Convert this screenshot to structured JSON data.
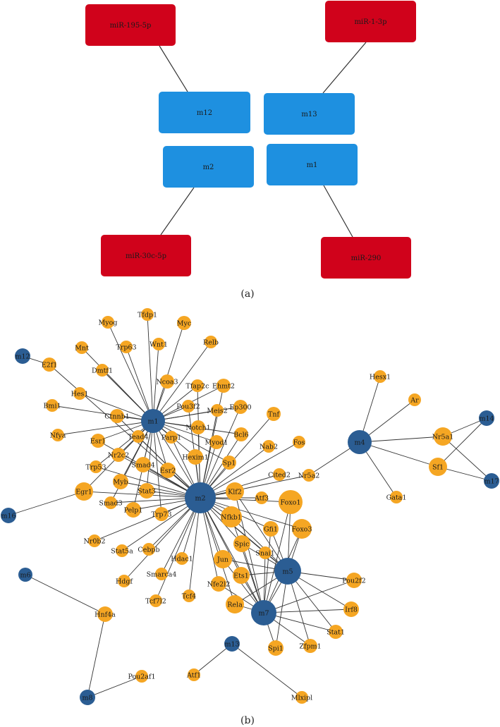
{
  "panel_a": {
    "label": "(a)",
    "mirnas": [
      {
        "id": "mir195",
        "label": "miR-195-5p"
      },
      {
        "id": "mir1",
        "label": "miR-1-3p"
      },
      {
        "id": "mir30c",
        "label": "miR-30c-5p"
      },
      {
        "id": "mir290",
        "label": "miR-290"
      }
    ],
    "modules": [
      {
        "id": "am12",
        "label": "m12"
      },
      {
        "id": "am13",
        "label": "m13"
      },
      {
        "id": "am2",
        "label": "m2"
      },
      {
        "id": "am1",
        "label": "m1"
      }
    ],
    "links": [
      [
        "mir195",
        "am12"
      ],
      [
        "mir1",
        "am13"
      ],
      [
        "mir30c",
        "am2"
      ],
      [
        "mir290",
        "am1"
      ]
    ]
  },
  "panel_b": {
    "label": "(b)",
    "module_nodes": [
      {
        "id": "m1",
        "label": "m1"
      },
      {
        "id": "m2",
        "label": "m2"
      },
      {
        "id": "m4",
        "label": "m4"
      },
      {
        "id": "m5",
        "label": "m5"
      },
      {
        "id": "m7",
        "label": "m7"
      },
      {
        "id": "m12",
        "label": "m12"
      },
      {
        "id": "m14",
        "label": "m14"
      },
      {
        "id": "m16",
        "label": "m16"
      },
      {
        "id": "m17",
        "label": "m17"
      },
      {
        "id": "m6",
        "label": "m6"
      },
      {
        "id": "m8",
        "label": "m8"
      },
      {
        "id": "m13",
        "label": "m13"
      }
    ],
    "gene_nodes": [
      {
        "id": "Myog",
        "label": "Myog"
      },
      {
        "id": "Tfdp1",
        "label": "Tfdp1"
      },
      {
        "id": "Myc",
        "label": "Myc"
      },
      {
        "id": "Relb",
        "label": "Relb"
      },
      {
        "id": "Mnt",
        "label": "Mnt"
      },
      {
        "id": "Trp63",
        "label": "Trp63"
      },
      {
        "id": "Wnt1",
        "label": "Wnt1"
      },
      {
        "id": "E2f1",
        "label": "E2f1"
      },
      {
        "id": "Dmtf1",
        "label": "Dmtf1"
      },
      {
        "id": "Ncoa3",
        "label": "Ncoa3"
      },
      {
        "id": "Tfap2c",
        "label": "Tfap2c"
      },
      {
        "id": "Ehmt2",
        "label": "Ehmt2"
      },
      {
        "id": "Hes1",
        "label": "Hes1"
      },
      {
        "id": "Bmi1",
        "label": "Bmi1"
      },
      {
        "id": "Pou3f2",
        "label": "Pou3f2"
      },
      {
        "id": "Meis2",
        "label": "Meis2"
      },
      {
        "id": "Ep300",
        "label": "Ep300"
      },
      {
        "id": "Ctnnb1",
        "label": "Ctnnb1"
      },
      {
        "id": "Tnf",
        "label": "Tnf"
      },
      {
        "id": "Nfya",
        "label": "Nfya"
      },
      {
        "id": "Tead4",
        "label": "Tead4"
      },
      {
        "id": "Notch1",
        "label": "Notch1"
      },
      {
        "id": "Bcl6",
        "label": "Bcl6"
      },
      {
        "id": "Esr1",
        "label": "Esr1"
      },
      {
        "id": "Parp1",
        "label": "Parp1"
      },
      {
        "id": "Myod1",
        "label": "Myod1"
      },
      {
        "id": "Nab2",
        "label": "Nab2"
      },
      {
        "id": "Fos",
        "label": "Fos"
      },
      {
        "id": "Nr2c2",
        "label": "Nr2c2"
      },
      {
        "id": "Hexim1",
        "label": "Hexim1"
      },
      {
        "id": "Smad4",
        "label": "Smad4"
      },
      {
        "id": "Esr2",
        "label": "Esr2"
      },
      {
        "id": "Sp1",
        "label": "Sp1"
      },
      {
        "id": "Trp53",
        "label": "Trp53"
      },
      {
        "id": "Cited2",
        "label": "Cited2"
      },
      {
        "id": "Nr5a2",
        "label": "Nr5a2"
      },
      {
        "id": "Myb",
        "label": "Myb"
      },
      {
        "id": "Klf2",
        "label": "Klf2"
      },
      {
        "id": "Egr1",
        "label": "Egr1"
      },
      {
        "id": "Stat3",
        "label": "Stat3"
      },
      {
        "id": "Atf3",
        "label": "Atf3"
      },
      {
        "id": "Foxo1",
        "label": "Foxo1"
      },
      {
        "id": "Smad3",
        "label": "Smad3"
      },
      {
        "id": "Pelp1",
        "label": "Pelp1"
      },
      {
        "id": "Trp73",
        "label": "Trp73"
      },
      {
        "id": "Nfkb1",
        "label": "Nfkb1"
      },
      {
        "id": "Gfi1",
        "label": "Gfi1"
      },
      {
        "id": "Foxo3",
        "label": "Foxo3"
      },
      {
        "id": "Nr0b2",
        "label": "Nr0b2"
      },
      {
        "id": "Spic",
        "label": "Spic"
      },
      {
        "id": "Snai1",
        "label": "Snai1"
      },
      {
        "id": "Stat5a",
        "label": "Stat5a"
      },
      {
        "id": "Cebpb",
        "label": "Cebpb"
      },
      {
        "id": "Hdac1",
        "label": "Hdac1"
      },
      {
        "id": "Jun",
        "label": "Jun"
      },
      {
        "id": "Hdgf",
        "label": "Hdgf"
      },
      {
        "id": "Smarca4",
        "label": "Smarca4"
      },
      {
        "id": "Ets1",
        "label": "Ets1"
      },
      {
        "id": "Tcf4",
        "label": "Tcf4"
      },
      {
        "id": "Nfe2l2",
        "label": "Nfe2l2"
      },
      {
        "id": "Tcf7l2",
        "label": "Tcf7l2"
      },
      {
        "id": "Rela",
        "label": "Rela"
      },
      {
        "id": "Pou2f2",
        "label": "Pou2f2"
      },
      {
        "id": "Irf8",
        "label": "Irf8"
      },
      {
        "id": "Stat1",
        "label": "Stat1"
      },
      {
        "id": "Spi1",
        "label": "Spi1"
      },
      {
        "id": "Zfpm1",
        "label": "Zfpm1"
      },
      {
        "id": "Hesx1",
        "label": "Hesx1"
      },
      {
        "id": "Ar",
        "label": "Ar"
      },
      {
        "id": "Nr5a1",
        "label": "Nr5a1"
      },
      {
        "id": "Sf1",
        "label": "Sf1"
      },
      {
        "id": "Gata1",
        "label": "Gata1"
      },
      {
        "id": "Hnf4a",
        "label": "Hnf4a"
      },
      {
        "id": "Pou2af1",
        "label": "Pou2af1"
      },
      {
        "id": "Atf1",
        "label": "Atf1"
      },
      {
        "id": "Mlxipl",
        "label": "Mlxipl"
      }
    ],
    "edges": [
      [
        "m1",
        "Myog"
      ],
      [
        "m1",
        "Tfdp1"
      ],
      [
        "m1",
        "Myc"
      ],
      [
        "m1",
        "Relb"
      ],
      [
        "m1",
        "Mnt"
      ],
      [
        "m1",
        "Trp63"
      ],
      [
        "m1",
        "Wnt1"
      ],
      [
        "m1",
        "Dmtf1"
      ],
      [
        "m1",
        "Ncoa3"
      ],
      [
        "m1",
        "Tfap2c"
      ],
      [
        "m1",
        "Ehmt2"
      ],
      [
        "m1",
        "Hes1"
      ],
      [
        "m1",
        "Bmi1"
      ],
      [
        "m1",
        "Pou3f2"
      ],
      [
        "m1",
        "Meis2"
      ],
      [
        "m1",
        "Ep300"
      ],
      [
        "m1",
        "Ctnnb1"
      ],
      [
        "m1",
        "Nfya"
      ],
      [
        "m1",
        "Tead4"
      ],
      [
        "m1",
        "Notch1"
      ],
      [
        "m1",
        "Bcl6"
      ],
      [
        "m1",
        "Esr1"
      ],
      [
        "m1",
        "Parp1"
      ],
      [
        "m1",
        "Myod1"
      ],
      [
        "m1",
        "Nr2c2"
      ],
      [
        "m1",
        "Hexim1"
      ],
      [
        "m1",
        "Smad4"
      ],
      [
        "m1",
        "Esr2"
      ],
      [
        "m1",
        "Trp53"
      ],
      [
        "m1",
        "Myb"
      ],
      [
        "m1",
        "Egr1"
      ],
      [
        "m1",
        "Stat3"
      ],
      [
        "m1",
        "Smad3"
      ],
      [
        "m1",
        "Pelp1"
      ],
      [
        "m1",
        "Trp73"
      ],
      [
        "m1",
        "m2"
      ],
      [
        "m1",
        "Sp1"
      ],
      [
        "m12",
        "E2f1"
      ],
      [
        "E2f1",
        "m2"
      ],
      [
        "m2",
        "Tnf"
      ],
      [
        "m2",
        "Nab2"
      ],
      [
        "m2",
        "Fos"
      ],
      [
        "m2",
        "Cited2"
      ],
      [
        "m2",
        "Nr5a2"
      ],
      [
        "m2",
        "Sp1"
      ],
      [
        "m2",
        "Klf2"
      ],
      [
        "m2",
        "Atf3"
      ],
      [
        "m2",
        "Foxo1"
      ],
      [
        "m2",
        "Nfkb1"
      ],
      [
        "m2",
        "Gfi1"
      ],
      [
        "m2",
        "Foxo3"
      ],
      [
        "m2",
        "Spic"
      ],
      [
        "m2",
        "Snai1"
      ],
      [
        "m2",
        "Jun"
      ],
      [
        "m2",
        "Ets1"
      ],
      [
        "m2",
        "Nfe2l2"
      ],
      [
        "m2",
        "Rela"
      ],
      [
        "m2",
        "Hexim1"
      ],
      [
        "m2",
        "Esr2"
      ],
      [
        "m2",
        "Stat3"
      ],
      [
        "m2",
        "Myb"
      ],
      [
        "m2",
        "Smad4"
      ],
      [
        "m2",
        "Nr2c2"
      ],
      [
        "m2",
        "Esr1"
      ],
      [
        "m2",
        "Parp1"
      ],
      [
        "m2",
        "Myod1"
      ],
      [
        "m2",
        "Bcl6"
      ],
      [
        "m2",
        "Notch1"
      ],
      [
        "m2",
        "Tead4"
      ],
      [
        "m2",
        "Ctnnb1"
      ],
      [
        "m2",
        "Meis2"
      ],
      [
        "m2",
        "Ep300"
      ],
      [
        "m2",
        "Pou3f2"
      ],
      [
        "m2",
        "Tfap2c"
      ],
      [
        "m2",
        "Ehmt2"
      ],
      [
        "m2",
        "Egr1"
      ],
      [
        "m2",
        "Pelp1"
      ],
      [
        "m2",
        "Trp73"
      ],
      [
        "m2",
        "Smad3"
      ],
      [
        "m2",
        "Nr0b2"
      ],
      [
        "m2",
        "Stat5a"
      ],
      [
        "m2",
        "Cebpb"
      ],
      [
        "m2",
        "Hdac1"
      ],
      [
        "m2",
        "Hdgf"
      ],
      [
        "m2",
        "Smarca4"
      ],
      [
        "m2",
        "Tcf4"
      ],
      [
        "m2",
        "Tcf7l2"
      ],
      [
        "m2",
        "Trp53"
      ],
      [
        "m2",
        "m5"
      ],
      [
        "m2",
        "m7"
      ],
      [
        "m16",
        "Egr1"
      ],
      [
        "m4",
        "Hesx1"
      ],
      [
        "m4",
        "Ar"
      ],
      [
        "m4",
        "Nr5a1"
      ],
      [
        "m4",
        "Sf1"
      ],
      [
        "m4",
        "Gata1"
      ],
      [
        "m4",
        "Nr5a2"
      ],
      [
        "m14",
        "Nr5a1"
      ],
      [
        "m14",
        "Sf1"
      ],
      [
        "m17",
        "Nr5a1"
      ],
      [
        "m17",
        "Sf1"
      ],
      [
        "m5",
        "Foxo1"
      ],
      [
        "m5",
        "Nfkb1"
      ],
      [
        "m5",
        "Foxo3"
      ],
      [
        "m5",
        "Gfi1"
      ],
      [
        "m5",
        "Snai1"
      ],
      [
        "m5",
        "Spic"
      ],
      [
        "m5",
        "Jun"
      ],
      [
        "m5",
        "Ets1"
      ],
      [
        "m5",
        "Rela"
      ],
      [
        "m5",
        "Pou2f2"
      ],
      [
        "m5",
        "Irf8"
      ],
      [
        "m5",
        "Stat1"
      ],
      [
        "m5",
        "Zfpm1"
      ],
      [
        "m5",
        "Spi1"
      ],
      [
        "m5",
        "Klf2"
      ],
      [
        "m5",
        "m7"
      ],
      [
        "m7",
        "Foxo1"
      ],
      [
        "m7",
        "Nfkb1"
      ],
      [
        "m7",
        "Gfi1"
      ],
      [
        "m7",
        "Snai1"
      ],
      [
        "m7",
        "Spic"
      ],
      [
        "m7",
        "Jun"
      ],
      [
        "m7",
        "Ets1"
      ],
      [
        "m7",
        "Nfe2l2"
      ],
      [
        "m7",
        "Rela"
      ],
      [
        "m7",
        "Pou2f2"
      ],
      [
        "m7",
        "Irf8"
      ],
      [
        "m7",
        "Stat1"
      ],
      [
        "m7",
        "Zfpm1"
      ],
      [
        "m7",
        "Spi1"
      ],
      [
        "m7",
        "Foxo3"
      ],
      [
        "m7",
        "Klf2"
      ],
      [
        "m6",
        "Hnf4a"
      ],
      [
        "Hnf4a",
        "m8"
      ],
      [
        "m8",
        "Pou2af1"
      ],
      [
        "m13",
        "Atf1"
      ],
      [
        "m13",
        "Mlxipl"
      ]
    ]
  },
  "colors": {
    "mirna_fill": "#d0021b",
    "module_box_fill": "#1e90e0",
    "module_node_fill": "#2b5d93",
    "gene_node_fill": "#f5a623",
    "edge_stroke": "#333333"
  }
}
